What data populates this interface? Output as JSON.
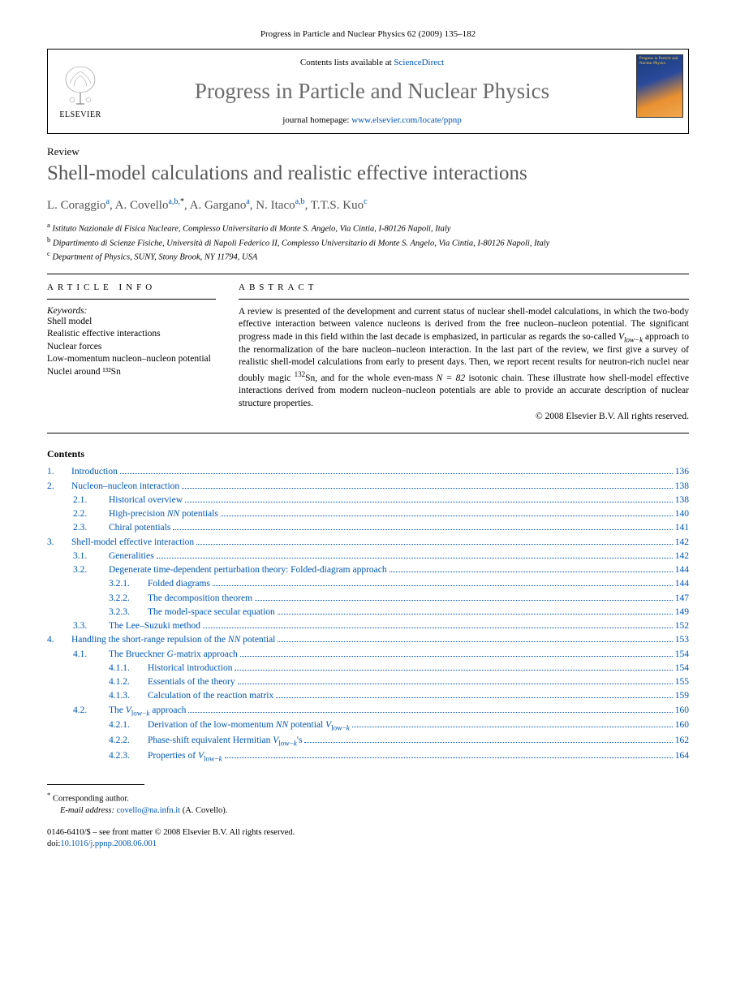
{
  "citation": "Progress in Particle and Nuclear Physics 62 (2009) 135–182",
  "elsevier": "ELSEVIER",
  "contents_available": "Contents lists available at ",
  "sciencedirect": "ScienceDirect",
  "journal_name": "Progress in Particle and Nuclear Physics",
  "homepage_label": "journal homepage: ",
  "homepage_url": "www.elsevier.com/locate/ppnp",
  "cover_text": "Progress in Particle and Nuclear Physics",
  "review_label": "Review",
  "paper_title": "Shell-model calculations and realistic effective interactions",
  "authors": {
    "a1_name": "L. Coraggio",
    "a1_aff": "a",
    "a2_name": "A. Covello",
    "a2_aff": "a,b,",
    "a2_star": "*",
    "a3_name": "A. Gargano",
    "a3_aff": "a",
    "a4_name": "N. Itaco",
    "a4_aff": "a,b",
    "a5_name": "T.T.S. Kuo",
    "a5_aff": "c"
  },
  "affiliations": {
    "a": "Istituto Nazionale di Fisica Nucleare, Complesso Universitario di Monte S. Angelo, Via Cintia, I-80126 Napoli, Italy",
    "b": "Dipartimento di Scienze Fisiche, Università di Napoli Federico II, Complesso Universitario di Monte S. Angelo, Via Cintia, I-80126 Napoli, Italy",
    "c": "Department of Physics, SUNY, Stony Brook, NY 11794, USA"
  },
  "article_info_heading": "ARTICLE INFO",
  "abstract_heading": "ABSTRACT",
  "keywords_label": "Keywords:",
  "keywords": [
    "Shell model",
    "Realistic effective interactions",
    "Nuclear forces",
    "Low-momentum nucleon–nucleon potential",
    "Nuclei around ¹³²Sn"
  ],
  "abstract_p1a": "A review is presented of the development and current status of nuclear shell-model calculations, in which the two-body effective interaction between valence nucleons is derived from the free nucleon–nucleon potential. The significant progress made in this field within the last decade is emphasized, in particular as regards the so-called ",
  "abstract_p1b": " approach to the renormalization of the bare nucleon–nucleon interaction. In the last part of the review, we first give a survey of realistic shell-model calculations from early to present days. Then, we report recent results for neutron-rich nuclei near doubly magic ",
  "abstract_p1c": "Sn, and for the whole even-mass ",
  "abstract_p1d": " isotonic chain. These illustrate how shell-model effective interactions derived from modern nucleon–nucleon potentials are able to provide an accurate description of nuclear structure properties.",
  "vlowk": "V",
  "vlowk_sub": "low−k",
  "sn132": "132",
  "n82": "N = 82",
  "copyright": "© 2008 Elsevier B.V. All rights reserved.",
  "contents_heading": "Contents",
  "toc": [
    {
      "lvl": 0,
      "num": "1.",
      "title": "Introduction",
      "page": "136"
    },
    {
      "lvl": 0,
      "num": "2.",
      "title": "Nucleon–nucleon interaction",
      "page": "138"
    },
    {
      "lvl": 1,
      "num": "2.1.",
      "title": "Historical overview",
      "page": "138"
    },
    {
      "lvl": 1,
      "num": "2.2.",
      "title": "High-precision NN potentials",
      "page": "140"
    },
    {
      "lvl": 1,
      "num": "2.3.",
      "title": "Chiral potentials",
      "page": "141"
    },
    {
      "lvl": 0,
      "num": "3.",
      "title": "Shell-model effective interaction",
      "page": "142"
    },
    {
      "lvl": 1,
      "num": "3.1.",
      "title": "Generalities",
      "page": "142"
    },
    {
      "lvl": 1,
      "num": "3.2.",
      "title": "Degenerate time-dependent perturbation theory: Folded-diagram approach",
      "page": "144"
    },
    {
      "lvl": 2,
      "num": "3.2.1.",
      "title": "Folded diagrams",
      "page": "144"
    },
    {
      "lvl": 2,
      "num": "3.2.2.",
      "title": "The decomposition theorem",
      "page": "147"
    },
    {
      "lvl": 2,
      "num": "3.2.3.",
      "title": "The model-space secular equation",
      "page": "149"
    },
    {
      "lvl": 1,
      "num": "3.3.",
      "title": "The Lee–Suzuki method",
      "page": "152"
    },
    {
      "lvl": 0,
      "num": "4.",
      "title": "Handling the short-range repulsion of the NN potential",
      "page": "153"
    },
    {
      "lvl": 1,
      "num": "4.1.",
      "title": "The Brueckner G-matrix approach",
      "page": "154"
    },
    {
      "lvl": 2,
      "num": "4.1.1.",
      "title": "Historical introduction",
      "page": "154"
    },
    {
      "lvl": 2,
      "num": "4.1.2.",
      "title": "Essentials of the theory",
      "page": "155"
    },
    {
      "lvl": 2,
      "num": "4.1.3.",
      "title": "Calculation of the reaction matrix",
      "page": "159"
    },
    {
      "lvl": 1,
      "num": "4.2.",
      "title": "The Vlow−k approach",
      "page": "160",
      "special": "vlowk"
    },
    {
      "lvl": 2,
      "num": "4.2.1.",
      "title": "Derivation of the low-momentum NN potential Vlow−k",
      "page": "160",
      "special": "vlowk2"
    },
    {
      "lvl": 2,
      "num": "4.2.2.",
      "title": "Phase-shift equivalent Hermitian Vlow−k's",
      "page": "162",
      "special": "vlowk3"
    },
    {
      "lvl": 2,
      "num": "4.2.3.",
      "title": "Properties of Vlow−k",
      "page": "164",
      "special": "vlowk4"
    }
  ],
  "corr_label": "Corresponding author.",
  "email_label": "E-mail address:",
  "email": "covello@na.infn.it",
  "email_name": "(A. Covello).",
  "issn_line": "0146-6410/$ – see front matter © 2008 Elsevier B.V. All rights reserved.",
  "doi_label": "doi:",
  "doi": "10.1016/j.ppnp.2008.06.001",
  "colors": {
    "link": "#0056b3",
    "title_gray": "#565656",
    "journal_gray": "#6b6b6b"
  }
}
